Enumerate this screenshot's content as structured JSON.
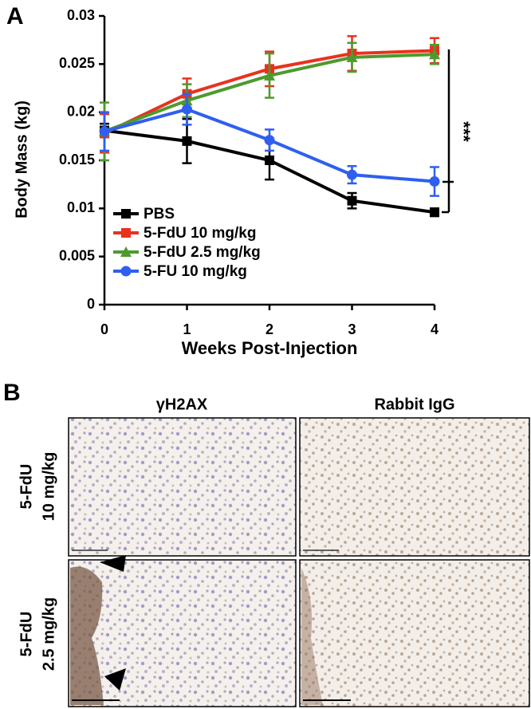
{
  "chart_data": {
    "type": "line",
    "panel_label": "A",
    "y_label": "Body Mass (kg)",
    "x_label": "Weeks Post-Injection",
    "annotation": "***",
    "x": [
      0,
      1,
      2,
      3,
      4
    ],
    "xlim": [
      0,
      4
    ],
    "xticks": [
      0,
      1,
      2,
      3,
      4
    ],
    "ylim": [
      0,
      0.03
    ],
    "yticks": [
      0,
      0.005,
      0.01,
      0.015,
      0.02,
      0.025,
      0.03
    ],
    "series": [
      {
        "name": "PBS",
        "color": "#000000",
        "marker": "square",
        "values": [
          0.0181,
          0.017,
          0.015,
          0.0108,
          0.0096
        ],
        "errors": [
          0.0007,
          0.0023,
          0.002,
          0.0008,
          0.0004
        ]
      },
      {
        "name": "5-FdU 10 mg/kg",
        "color": "#e8321e",
        "marker": "square",
        "values": [
          0.0178,
          0.0219,
          0.0245,
          0.0261,
          0.0264
        ],
        "errors": [
          0.002,
          0.0016,
          0.0018,
          0.0018,
          0.0013
        ]
      },
      {
        "name": "5-FdU 2.5 mg/kg",
        "color": "#4e9a2e",
        "marker": "triangle",
        "values": [
          0.018,
          0.0212,
          0.0238,
          0.0257,
          0.026
        ],
        "errors": [
          0.003,
          0.0017,
          0.0023,
          0.0015,
          0.001
        ]
      },
      {
        "name": "5-FU 10 mg/kg",
        "color": "#2f5fef",
        "marker": "circle",
        "values": [
          0.018,
          0.0203,
          0.0171,
          0.0135,
          0.0128
        ],
        "errors": [
          0.002,
          0.0016,
          0.0011,
          0.0009,
          0.0015
        ]
      }
    ]
  },
  "panel_b": {
    "panel_label": "B",
    "columns": [
      "γH2AX",
      "Rabbit IgG"
    ],
    "rows": [
      [
        "5-FdU",
        "10 mg/kg"
      ],
      [
        "5-FdU",
        "2.5 mg/kg"
      ]
    ]
  }
}
